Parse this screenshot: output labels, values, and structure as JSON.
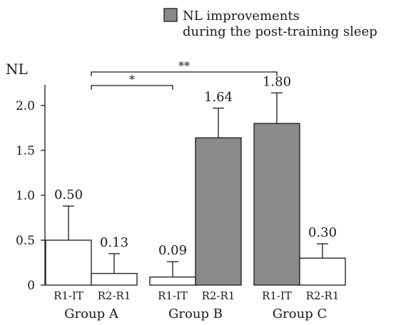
{
  "chart_data": {
    "type": "bar",
    "ylabel": "NL",
    "ylim": [
      0,
      2.5
    ],
    "yticks": [
      "0",
      "0.5",
      "1.0",
      "1.5",
      "2.0"
    ],
    "legend": {
      "line1": "NL improvements",
      "line2": "during the post-training sleep",
      "color": "#8a8a8d",
      "position": "top-right"
    },
    "groups": [
      {
        "name": "Group A",
        "bars": [
          {
            "label": "R1-IT",
            "value": 0.5,
            "value_label": "0.50",
            "err": 0.38,
            "filled": false
          },
          {
            "label": "R2-R1",
            "value": 0.13,
            "value_label": "0.13",
            "err": 0.22,
            "filled": false
          }
        ]
      },
      {
        "name": "Group B",
        "bars": [
          {
            "label": "R1-IT",
            "value": 0.09,
            "value_label": "0.09",
            "err": 0.17,
            "filled": false
          },
          {
            "label": "R2-R1",
            "value": 1.64,
            "value_label": "1.64",
            "err": 0.33,
            "filled": true
          }
        ]
      },
      {
        "name": "Group C",
        "bars": [
          {
            "label": "R1-IT",
            "value": 1.8,
            "value_label": "1.80",
            "err": 0.34,
            "filled": true
          },
          {
            "label": "R2-R1",
            "value": 0.3,
            "value_label": "0.30",
            "err": 0.16,
            "filled": false
          }
        ]
      }
    ],
    "significance": [
      {
        "label": "**",
        "from": [
          0,
          1
        ],
        "to": [
          2,
          0
        ]
      },
      {
        "label": "*",
        "from": [
          0,
          1
        ],
        "to": [
          1,
          0
        ]
      }
    ],
    "colors": {
      "filled": "#8a8a8d",
      "empty": "#ffffff",
      "stroke": "#1a1a1a"
    }
  }
}
